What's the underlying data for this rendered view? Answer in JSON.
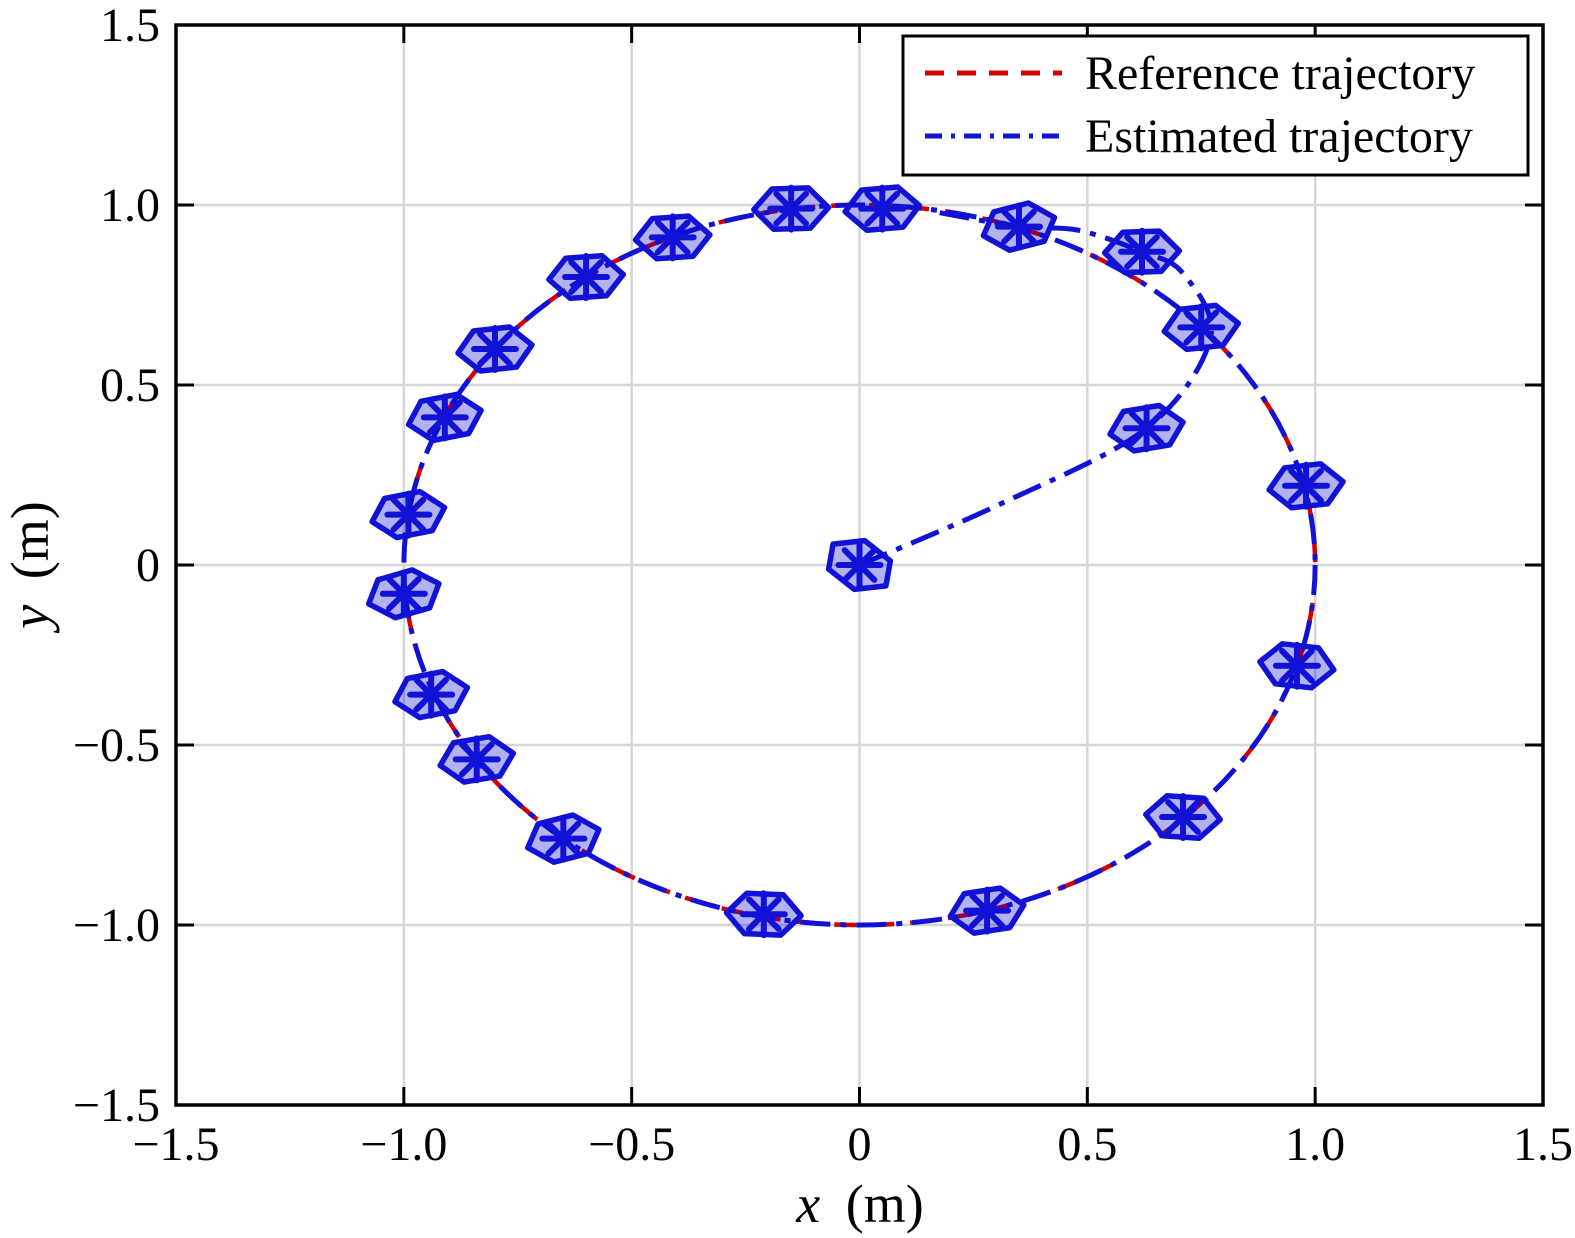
{
  "chart_data": {
    "type": "line",
    "title": "",
    "xlabel_var": "x",
    "xlabel_unit": "(m)",
    "ylabel_var": "y",
    "ylabel_unit": "(m)",
    "xlim": [
      -1.5,
      1.5
    ],
    "ylim": [
      -1.5,
      1.5
    ],
    "grid": true,
    "xticks": [
      {
        "value": -1.5,
        "label": "−1.5"
      },
      {
        "value": -1.0,
        "label": "−1.0"
      },
      {
        "value": -0.5,
        "label": "−0.5"
      },
      {
        "value": 0.0,
        "label": "0"
      },
      {
        "value": 0.5,
        "label": "0.5"
      },
      {
        "value": 1.0,
        "label": "1.0"
      },
      {
        "value": 1.5,
        "label": "1.5"
      }
    ],
    "yticks": [
      {
        "value": -1.5,
        "label": "−1.5"
      },
      {
        "value": -1.0,
        "label": "−1.0"
      },
      {
        "value": -0.5,
        "label": "−0.5"
      },
      {
        "value": 0.0,
        "label": "0"
      },
      {
        "value": 0.5,
        "label": "0.5"
      },
      {
        "value": 1.0,
        "label": "1.0"
      },
      {
        "value": 1.5,
        "label": "1.5"
      }
    ],
    "legend": {
      "position": "top-right",
      "entries": [
        {
          "label": "Reference trajectory",
          "color": "#d40000",
          "line_style": "dashed"
        },
        {
          "label": "Estimated trajectory",
          "color": "#1212d6",
          "line_style": "dash-dot"
        }
      ]
    },
    "series": [
      {
        "name": "Reference trajectory",
        "shape": "circle",
        "center": [
          0,
          0
        ],
        "radius": 1.0,
        "color": "#d40000",
        "line_style": "dashed"
      },
      {
        "name": "Estimated trajectory",
        "color": "#1212d6",
        "line_style": "dash-dot",
        "description": "starts at origin, spirals out, overshoots, then converges onto the unit circle",
        "spiral_points": [
          [
            0.0,
            0.0
          ],
          [
            0.31,
            0.17
          ],
          [
            0.63,
            0.38
          ],
          [
            0.77,
            0.63
          ],
          [
            0.71,
            0.81
          ],
          [
            0.62,
            0.87
          ],
          [
            0.48,
            0.93
          ],
          [
            0.35,
            0.94
          ],
          [
            0.17,
            0.98
          ]
        ],
        "converged_circle": {
          "center": [
            0,
            0
          ],
          "radius": 1.0
        }
      }
    ],
    "robot_footprint": {
      "vertices": [
        [
          -0.082,
          0.0
        ],
        [
          -0.04,
          0.056
        ],
        [
          0.04,
          0.056
        ],
        [
          0.082,
          0.0
        ],
        [
          0.04,
          -0.056
        ],
        [
          -0.04,
          -0.056
        ]
      ],
      "fill": "#0000cc",
      "fill_opacity": 0.3,
      "edge": "#1212d6",
      "marker": "asterisk",
      "marker_color": "#1212d6"
    },
    "robot_poses": [
      {
        "x": 0.0,
        "y": 0.0,
        "theta_deg": -45
      },
      {
        "x": 0.63,
        "y": 0.38,
        "theta_deg": 12
      },
      {
        "x": 0.75,
        "y": 0.66,
        "theta_deg": 8
      },
      {
        "x": 0.62,
        "y": 0.87,
        "theta_deg": 2
      },
      {
        "x": 0.35,
        "y": 0.94,
        "theta_deg": 18
      },
      {
        "x": 0.05,
        "y": 0.99,
        "theta_deg": 6
      },
      {
        "x": -0.15,
        "y": 0.99,
        "theta_deg": 2
      },
      {
        "x": -0.41,
        "y": 0.91,
        "theta_deg": 5
      },
      {
        "x": -0.6,
        "y": 0.8,
        "theta_deg": 5
      },
      {
        "x": -0.8,
        "y": 0.6,
        "theta_deg": 8
      },
      {
        "x": -0.91,
        "y": 0.41,
        "theta_deg": 14
      },
      {
        "x": -0.99,
        "y": 0.14,
        "theta_deg": 14
      },
      {
        "x": -1.0,
        "y": -0.08,
        "theta_deg": 20
      },
      {
        "x": -0.94,
        "y": -0.36,
        "theta_deg": 14
      },
      {
        "x": -0.84,
        "y": -0.54,
        "theta_deg": 12
      },
      {
        "x": -0.65,
        "y": -0.76,
        "theta_deg": 18
      },
      {
        "x": -0.21,
        "y": -0.97,
        "theta_deg": -3
      },
      {
        "x": 0.28,
        "y": -0.96,
        "theta_deg": 11
      },
      {
        "x": 0.71,
        "y": -0.7,
        "theta_deg": -5
      },
      {
        "x": 0.96,
        "y": -0.28,
        "theta_deg": -8
      },
      {
        "x": 0.98,
        "y": 0.22,
        "theta_deg": 8
      }
    ],
    "colors": {
      "grid": "#d6d6d6",
      "axis": "#000000",
      "background": "#ffffff"
    }
  }
}
